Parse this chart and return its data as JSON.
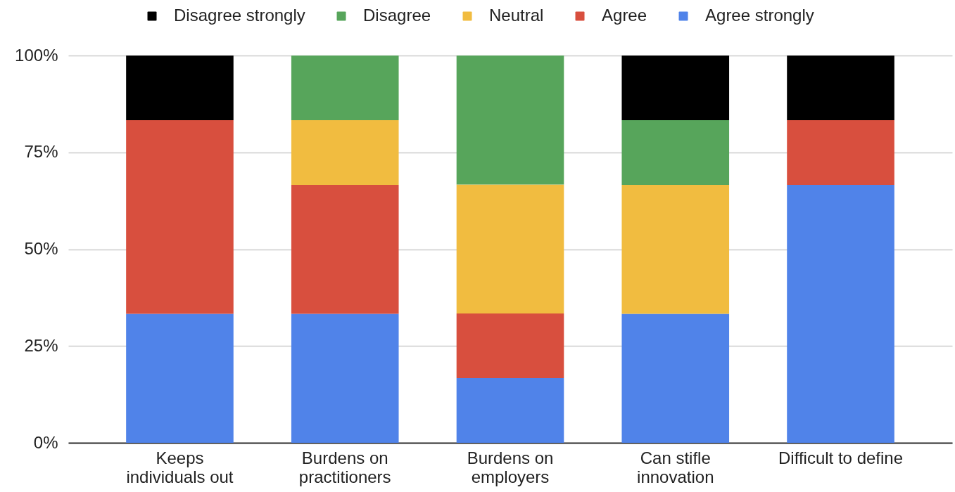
{
  "chart_data": {
    "type": "bar",
    "stacked": true,
    "categories": [
      "Keeps individuals out",
      "Burdens on practitioners",
      "Burdens on employers",
      "Can stifle innovation",
      "Difficult to define"
    ],
    "series": [
      {
        "name": "Agree strongly",
        "color": "#5083e9",
        "values": [
          33.3,
          33.3,
          16.7,
          33.3,
          66.6
        ]
      },
      {
        "name": "Agree",
        "color": "#d84f3e",
        "values": [
          50,
          33.3,
          16.7,
          null,
          16.7
        ]
      },
      {
        "name": "Neutral",
        "color": "#f1bc40",
        "values": [
          null,
          16.7,
          33.3,
          33.3,
          null
        ]
      },
      {
        "name": "Disagree",
        "color": "#57a55b",
        "values": [
          null,
          16.7,
          33.3,
          16.7,
          null
        ]
      },
      {
        "name": "Disagree strongly",
        "color": "#000000",
        "values": [
          16.7,
          null,
          null,
          16.7,
          16.7
        ]
      }
    ],
    "ylim": [
      0,
      100
    ],
    "yticks": [
      {
        "value": 0,
        "label": "0%"
      },
      {
        "value": 25,
        "label": "25%"
      },
      {
        "value": 50,
        "label": "50%"
      },
      {
        "value": 75,
        "label": "75%"
      },
      {
        "value": 100,
        "label": "100%"
      }
    ],
    "grid": "y",
    "legend": "top"
  }
}
